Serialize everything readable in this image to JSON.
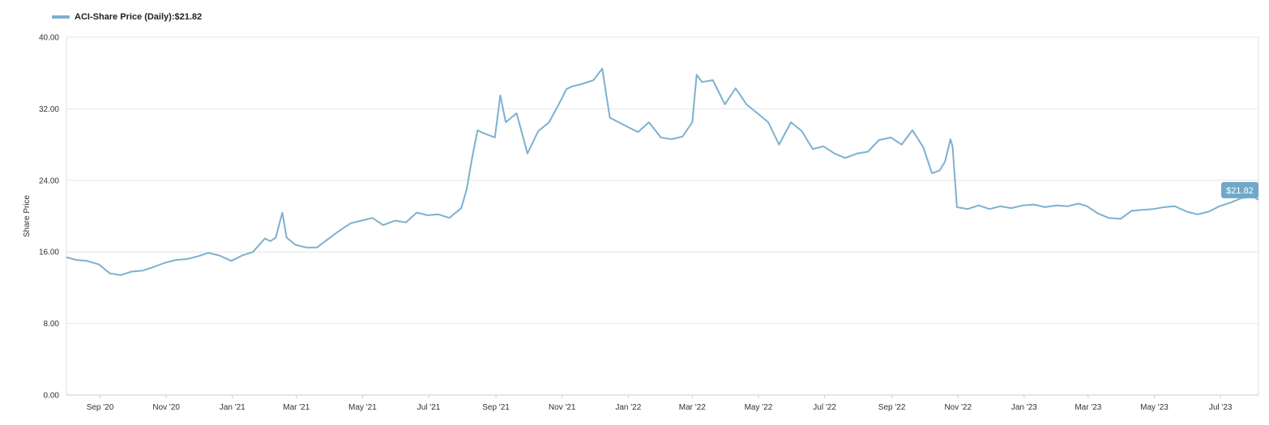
{
  "legend": {
    "label": "ACI-Share Price (Daily):",
    "value": "$21.82",
    "color": "#7eb0cf"
  },
  "chart_data": {
    "type": "line",
    "title": "",
    "xlabel": "",
    "ylabel": "Share Price",
    "ylim": [
      0,
      40
    ],
    "yticks": [
      "0.00",
      "8.00",
      "16.00",
      "24.00",
      "32.00",
      "40.00"
    ],
    "xticks": [
      "Sep '20",
      "Nov '20",
      "Jan '21",
      "Mar '21",
      "May '21",
      "Jul '21",
      "Sep '21",
      "Nov '21",
      "Jan '22",
      "Mar '22",
      "May '22",
      "Jul '22",
      "Sep '22",
      "Nov '22",
      "Jan '23",
      "Mar '23",
      "May '23",
      "Jul '23"
    ],
    "grid": "horizontal",
    "last_value_label": "$21.82",
    "series": [
      {
        "name": "ACI-Share Price (Daily)",
        "color": "#7eb0cf",
        "x": [
          "2020-08-01",
          "2020-08-10",
          "2020-08-20",
          "2020-08-31",
          "2020-09-10",
          "2020-09-20",
          "2020-09-30",
          "2020-10-10",
          "2020-10-20",
          "2020-10-31",
          "2020-11-10",
          "2020-11-20",
          "2020-11-30",
          "2020-12-10",
          "2020-12-20",
          "2020-12-31",
          "2021-01-10",
          "2021-01-20",
          "2021-01-31",
          "2021-02-05",
          "2021-02-10",
          "2021-02-16",
          "2021-02-20",
          "2021-02-28",
          "2021-03-10",
          "2021-03-20",
          "2021-03-31",
          "2021-04-10",
          "2021-04-20",
          "2021-04-30",
          "2021-05-10",
          "2021-05-20",
          "2021-05-31",
          "2021-06-10",
          "2021-06-20",
          "2021-06-30",
          "2021-07-10",
          "2021-07-20",
          "2021-07-31",
          "2021-08-05",
          "2021-08-10",
          "2021-08-15",
          "2021-08-20",
          "2021-08-31",
          "2021-09-05",
          "2021-09-10",
          "2021-09-20",
          "2021-09-30",
          "2021-10-10",
          "2021-10-20",
          "2021-10-31",
          "2021-11-05",
          "2021-11-10",
          "2021-11-20",
          "2021-11-30",
          "2021-12-08",
          "2021-12-15",
          "2021-12-31",
          "2022-01-10",
          "2022-01-20",
          "2022-01-31",
          "2022-02-10",
          "2022-02-20",
          "2022-03-01",
          "2022-03-05",
          "2022-03-10",
          "2022-03-20",
          "2022-03-31",
          "2022-04-10",
          "2022-04-20",
          "2022-04-30",
          "2022-05-10",
          "2022-05-20",
          "2022-05-31",
          "2022-06-10",
          "2022-06-20",
          "2022-06-30",
          "2022-07-10",
          "2022-07-20",
          "2022-07-31",
          "2022-08-10",
          "2022-08-20",
          "2022-08-31",
          "2022-09-10",
          "2022-09-20",
          "2022-09-30",
          "2022-10-08",
          "2022-10-15",
          "2022-10-20",
          "2022-10-25",
          "2022-10-27",
          "2022-10-31",
          "2022-11-10",
          "2022-11-20",
          "2022-11-30",
          "2022-12-10",
          "2022-12-20",
          "2022-12-31",
          "2023-01-10",
          "2023-01-20",
          "2023-01-31",
          "2023-02-10",
          "2023-02-20",
          "2023-02-28",
          "2023-03-10",
          "2023-03-20",
          "2023-03-31",
          "2023-04-10",
          "2023-04-20",
          "2023-04-30",
          "2023-05-10",
          "2023-05-20",
          "2023-05-31",
          "2023-06-10",
          "2023-06-20",
          "2023-06-30",
          "2023-07-10",
          "2023-07-20",
          "2023-07-31",
          "2023-08-05"
        ],
        "values": [
          15.4,
          15.1,
          15.0,
          14.6,
          13.6,
          13.4,
          13.8,
          13.9,
          14.3,
          14.8,
          15.1,
          15.2,
          15.5,
          15.9,
          15.6,
          15.0,
          15.6,
          16.0,
          17.5,
          17.2,
          17.6,
          20.4,
          17.6,
          16.8,
          16.5,
          16.5,
          17.5,
          18.4,
          19.2,
          19.5,
          19.8,
          19.0,
          19.5,
          19.3,
          20.4,
          20.1,
          20.2,
          19.8,
          20.9,
          23.0,
          26.5,
          29.6,
          29.3,
          28.8,
          33.5,
          30.5,
          31.5,
          27.0,
          29.5,
          30.5,
          33.0,
          34.2,
          34.5,
          34.8,
          35.2,
          36.5,
          31.0,
          30.0,
          29.4,
          30.5,
          28.8,
          28.6,
          28.9,
          30.5,
          35.8,
          35.0,
          35.2,
          32.5,
          34.3,
          32.5,
          31.5,
          30.5,
          28.0,
          30.5,
          29.5,
          27.5,
          27.8,
          27.0,
          26.5,
          27.0,
          27.2,
          28.5,
          28.8,
          28.0,
          29.6,
          27.7,
          24.8,
          25.1,
          26.1,
          28.6,
          27.8,
          21.0,
          20.8,
          21.2,
          20.8,
          21.1,
          20.9,
          21.2,
          21.3,
          21.0,
          21.2,
          21.1,
          21.4,
          21.1,
          20.3,
          19.8,
          19.7,
          20.6,
          20.7,
          20.8,
          21.0,
          21.1,
          20.5,
          20.2,
          20.5,
          21.1,
          21.5,
          22.0,
          22.2,
          21.82
        ]
      }
    ]
  }
}
